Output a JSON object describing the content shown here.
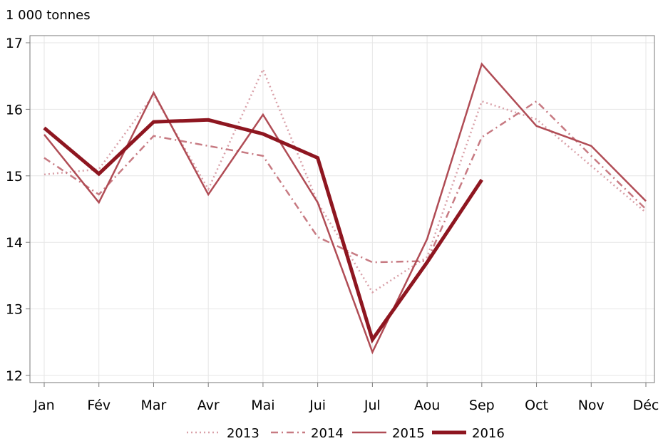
{
  "chart_data": {
    "type": "line",
    "unit_label": "1 000 tonnes",
    "categories": [
      "Jan",
      "Fév",
      "Mar",
      "Avr",
      "Mai",
      "Jui",
      "Jul",
      "Aou",
      "Sep",
      "Oct",
      "Nov",
      "Déc"
    ],
    "ylim": [
      12,
      17
    ],
    "yticks": [
      "12",
      "13",
      "14",
      "15",
      "16",
      "17"
    ],
    "grid": true,
    "legend_position": "bottom",
    "series": [
      {
        "name": "2013",
        "style": "dotted",
        "color": "#d9a0a8",
        "values": [
          15.02,
          15.1,
          16.22,
          14.8,
          16.6,
          14.6,
          13.25,
          13.78,
          16.12,
          15.85,
          15.15,
          14.45
        ]
      },
      {
        "name": "2014",
        "style": "dash-dot",
        "color": "#c77a82",
        "values": [
          15.27,
          14.72,
          15.6,
          15.45,
          15.3,
          14.08,
          13.7,
          13.72,
          15.58,
          16.12,
          15.3,
          14.5
        ]
      },
      {
        "name": "2015",
        "style": "solid",
        "color": "#b04c55",
        "values": [
          15.62,
          14.6,
          16.25,
          14.72,
          15.92,
          14.6,
          12.35,
          14.05,
          16.68,
          15.75,
          15.45,
          14.62
        ]
      },
      {
        "name": "2016",
        "style": "solid-thick",
        "color": "#8e1620",
        "values": [
          15.72,
          15.03,
          15.81,
          15.84,
          15.63,
          15.27,
          12.54,
          13.7,
          14.94,
          null,
          null,
          null
        ]
      }
    ]
  }
}
